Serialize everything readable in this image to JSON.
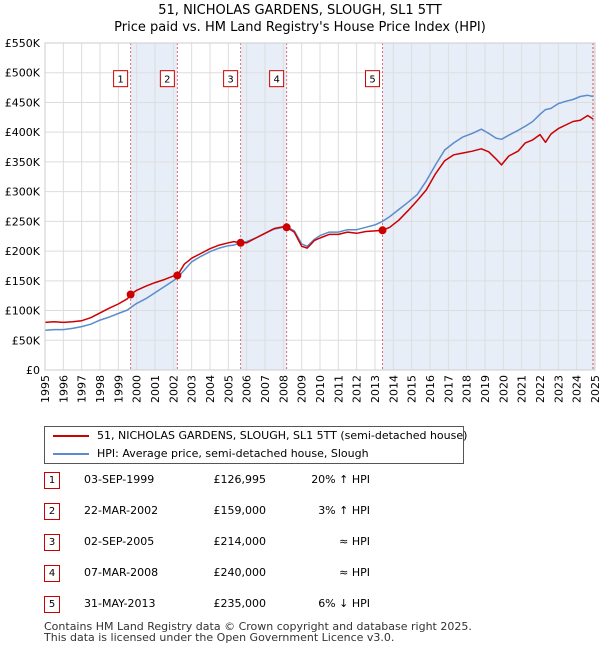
{
  "chart_data": {
    "type": "line",
    "title": "51, NICHOLAS GARDENS, SLOUGH, SL1 5TT",
    "subtitle": "Price paid vs. HM Land Registry's House Price Index (HPI)",
    "xlabel": "",
    "ylabel": "",
    "xlim": [
      1995,
      2025
    ],
    "ylim": [
      0,
      550000
    ],
    "y_ticks": [
      {
        "value": 0,
        "label": "£0"
      },
      {
        "value": 50000,
        "label": "£50K"
      },
      {
        "value": 100000,
        "label": "£100K"
      },
      {
        "value": 150000,
        "label": "£150K"
      },
      {
        "value": 200000,
        "label": "£200K"
      },
      {
        "value": 250000,
        "label": "£250K"
      },
      {
        "value": 300000,
        "label": "£300K"
      },
      {
        "value": 350000,
        "label": "£350K"
      },
      {
        "value": 400000,
        "label": "£400K"
      },
      {
        "value": 450000,
        "label": "£450K"
      },
      {
        "value": 500000,
        "label": "£500K"
      },
      {
        "value": 550000,
        "label": "£550K"
      }
    ],
    "x_ticks": [
      "1995",
      "1996",
      "1997",
      "1998",
      "1999",
      "2000",
      "2001",
      "2002",
      "2003",
      "2004",
      "2005",
      "2006",
      "2007",
      "2008",
      "2009",
      "2010",
      "2011",
      "2012",
      "2013",
      "2014",
      "2015",
      "2016",
      "2017",
      "2018",
      "2019",
      "2020",
      "2021",
      "2022",
      "2023",
      "2024",
      "2025"
    ],
    "grid": true,
    "series": [
      {
        "name": "51, NICHOLAS GARDENS, SLOUGH, SL1 5TT (semi-detached house)",
        "color": "#cc0000",
        "points": [
          [
            1995.0,
            80000
          ],
          [
            1995.5,
            81000
          ],
          [
            1996.0,
            80000
          ],
          [
            1996.5,
            81000
          ],
          [
            1997.0,
            83000
          ],
          [
            1997.5,
            88000
          ],
          [
            1998.0,
            96000
          ],
          [
            1998.5,
            104000
          ],
          [
            1999.0,
            111000
          ],
          [
            1999.5,
            120000
          ],
          [
            1999.67,
            126995
          ],
          [
            2000.0,
            134000
          ],
          [
            2000.5,
            141000
          ],
          [
            2001.0,
            147000
          ],
          [
            2001.5,
            152000
          ],
          [
            2002.0,
            158000
          ],
          [
            2002.22,
            159000
          ],
          [
            2002.6,
            178000
          ],
          [
            2003.0,
            188000
          ],
          [
            2003.5,
            196000
          ],
          [
            2004.0,
            204000
          ],
          [
            2004.5,
            210000
          ],
          [
            2005.0,
            214000
          ],
          [
            2005.3,
            216000
          ],
          [
            2005.67,
            214000
          ],
          [
            2006.0,
            214000
          ],
          [
            2006.5,
            222000
          ],
          [
            2007.0,
            230000
          ],
          [
            2007.5,
            238000
          ],
          [
            2008.0,
            241000
          ],
          [
            2008.18,
            240000
          ],
          [
            2008.6,
            232000
          ],
          [
            2009.0,
            208000
          ],
          [
            2009.3,
            205000
          ],
          [
            2009.7,
            218000
          ],
          [
            2010.0,
            222000
          ],
          [
            2010.5,
            228000
          ],
          [
            2011.0,
            228000
          ],
          [
            2011.5,
            232000
          ],
          [
            2012.0,
            230000
          ],
          [
            2012.5,
            233000
          ],
          [
            2013.0,
            234000
          ],
          [
            2013.41,
            235000
          ],
          [
            2013.8,
            240000
          ],
          [
            2014.3,
            252000
          ],
          [
            2014.8,
            268000
          ],
          [
            2015.3,
            285000
          ],
          [
            2015.8,
            303000
          ],
          [
            2016.3,
            330000
          ],
          [
            2016.8,
            352000
          ],
          [
            2017.3,
            362000
          ],
          [
            2017.8,
            365000
          ],
          [
            2018.3,
            368000
          ],
          [
            2018.8,
            372000
          ],
          [
            2019.2,
            367000
          ],
          [
            2019.6,
            355000
          ],
          [
            2019.9,
            345000
          ],
          [
            2020.3,
            360000
          ],
          [
            2020.8,
            368000
          ],
          [
            2021.2,
            382000
          ],
          [
            2021.6,
            387000
          ],
          [
            2022.0,
            396000
          ],
          [
            2022.3,
            383000
          ],
          [
            2022.6,
            397000
          ],
          [
            2023.0,
            406000
          ],
          [
            2023.4,
            412000
          ],
          [
            2023.8,
            418000
          ],
          [
            2024.2,
            420000
          ],
          [
            2024.6,
            428000
          ],
          [
            2024.9,
            422000
          ]
        ]
      },
      {
        "name": "HPI: Average price, semi-detached house, Slough",
        "color": "#5b8ccc",
        "points": [
          [
            1995.0,
            67000
          ],
          [
            1995.5,
            68000
          ],
          [
            1996.0,
            68000
          ],
          [
            1996.5,
            70000
          ],
          [
            1997.0,
            73000
          ],
          [
            1997.5,
            77000
          ],
          [
            1998.0,
            84000
          ],
          [
            1998.5,
            89000
          ],
          [
            1999.0,
            95000
          ],
          [
            1999.5,
            101000
          ],
          [
            1999.67,
            105000
          ],
          [
            2000.0,
            112000
          ],
          [
            2000.5,
            120000
          ],
          [
            2001.0,
            130000
          ],
          [
            2001.5,
            140000
          ],
          [
            2002.0,
            150000
          ],
          [
            2002.22,
            155000
          ],
          [
            2002.6,
            168000
          ],
          [
            2003.0,
            182000
          ],
          [
            2003.5,
            191000
          ],
          [
            2004.0,
            199000
          ],
          [
            2004.5,
            205000
          ],
          [
            2005.0,
            209000
          ],
          [
            2005.3,
            210000
          ],
          [
            2005.67,
            214000
          ],
          [
            2006.0,
            216000
          ],
          [
            2006.5,
            222000
          ],
          [
            2007.0,
            230000
          ],
          [
            2007.5,
            237000
          ],
          [
            2008.0,
            240000
          ],
          [
            2008.18,
            241000
          ],
          [
            2008.6,
            234000
          ],
          [
            2009.0,
            212000
          ],
          [
            2009.3,
            208000
          ],
          [
            2009.7,
            220000
          ],
          [
            2010.0,
            226000
          ],
          [
            2010.5,
            232000
          ],
          [
            2011.0,
            232000
          ],
          [
            2011.5,
            236000
          ],
          [
            2012.0,
            236000
          ],
          [
            2012.5,
            240000
          ],
          [
            2013.0,
            244000
          ],
          [
            2013.41,
            250000
          ],
          [
            2013.8,
            258000
          ],
          [
            2014.3,
            270000
          ],
          [
            2014.8,
            282000
          ],
          [
            2015.3,
            295000
          ],
          [
            2015.8,
            318000
          ],
          [
            2016.3,
            345000
          ],
          [
            2016.8,
            370000
          ],
          [
            2017.3,
            382000
          ],
          [
            2017.8,
            392000
          ],
          [
            2018.3,
            398000
          ],
          [
            2018.8,
            405000
          ],
          [
            2019.2,
            398000
          ],
          [
            2019.6,
            390000
          ],
          [
            2019.9,
            388000
          ],
          [
            2020.3,
            395000
          ],
          [
            2020.8,
            403000
          ],
          [
            2021.2,
            410000
          ],
          [
            2021.6,
            418000
          ],
          [
            2022.0,
            430000
          ],
          [
            2022.3,
            438000
          ],
          [
            2022.6,
            440000
          ],
          [
            2023.0,
            448000
          ],
          [
            2023.4,
            452000
          ],
          [
            2023.8,
            455000
          ],
          [
            2024.2,
            460000
          ],
          [
            2024.6,
            462000
          ],
          [
            2024.9,
            460000
          ]
        ]
      }
    ],
    "sales": [
      {
        "num": "1",
        "x": 1999.67,
        "value": 126995
      },
      {
        "num": "2",
        "x": 2002.22,
        "value": 159000
      },
      {
        "num": "3",
        "x": 2005.67,
        "value": 214000
      },
      {
        "num": "4",
        "x": 2008.18,
        "value": 240000
      },
      {
        "num": "5",
        "x": 2013.41,
        "value": 235000
      }
    ],
    "shaded_spans": [
      [
        1999.67,
        2002.22
      ],
      [
        2005.67,
        2008.18
      ],
      [
        2013.41,
        2025.0
      ]
    ],
    "box_label_value": 490000
  },
  "legend": {
    "property_label": "51, NICHOLAS GARDENS, SLOUGH, SL1 5TT (semi-detached house)",
    "hpi_label": "HPI: Average price, semi-detached house, Slough"
  },
  "sales_table": [
    {
      "num": "1",
      "date": "03-SEP-1999",
      "price": "£126,995",
      "hpi": "20% ↑ HPI"
    },
    {
      "num": "2",
      "date": "22-MAR-2002",
      "price": "£159,000",
      "hpi": "3% ↑ HPI"
    },
    {
      "num": "3",
      "date": "02-SEP-2005",
      "price": "£214,000",
      "hpi": "≈ HPI"
    },
    {
      "num": "4",
      "date": "07-MAR-2008",
      "price": "£240,000",
      "hpi": "≈ HPI"
    },
    {
      "num": "5",
      "date": "31-MAY-2013",
      "price": "£235,000",
      "hpi": "6% ↓ HPI"
    }
  ],
  "footer": {
    "line1": "Contains HM Land Registry data © Crown copyright and database right 2025.",
    "line2": "This data is licensed under the Open Government Licence v3.0."
  }
}
